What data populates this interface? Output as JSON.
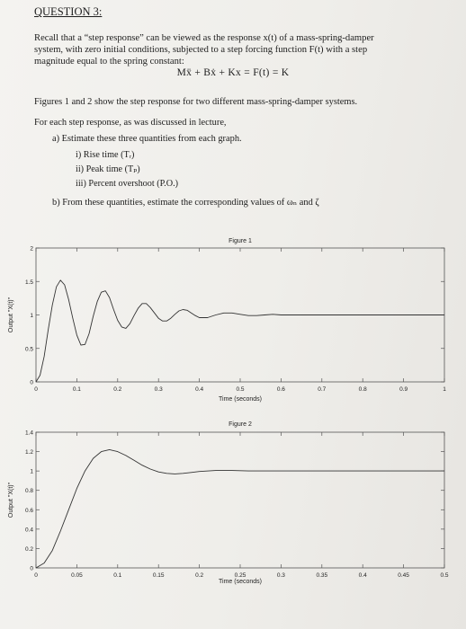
{
  "header": {
    "title": "QUESTION 3:"
  },
  "intro": {
    "line1": "Recall that a “step response” can be viewed as the response x(t) of a mass-spring-damper",
    "line2": "system, with zero initial conditions, subjected to a step forcing function F(t) with a step",
    "line3": "magnitude equal to the spring constant:"
  },
  "equation": "Mẍ + Bẋ + Kx = F(t) = K",
  "figures_text": "Figures 1 and 2 show the step response for two different mass-spring-damper systems.",
  "for_each": "For each step response, as was discussed in lecture,",
  "part_a": {
    "label": "a)  Estimate these three quantities from each graph.",
    "items": [
      "i)    Rise time (Tᵣ)",
      "ii)   Peak time (Tₚ)",
      "iii)  Percent overshoot (P.O.)"
    ]
  },
  "part_b": {
    "label": "b)  From these quantities, estimate the corresponding values of ωₙ and ζ"
  },
  "chart_data": [
    {
      "type": "line",
      "title": "Figure 1",
      "xlabel": "Time (seconds)",
      "ylabel": "Output \"X(t)\"",
      "xlim": [
        0,
        1
      ],
      "ylim": [
        0,
        2
      ],
      "xticks": [
        "0",
        "0.1",
        "0.2",
        "0.3",
        "0.4",
        "0.5",
        "0.6",
        "0.7",
        "0.8",
        "0.9",
        "1"
      ],
      "yticks": [
        "0",
        "0.5",
        "1",
        "1.5",
        "2"
      ],
      "grid": false,
      "series": [
        {
          "x": [
            0,
            0.01,
            0.02,
            0.03,
            0.04,
            0.05,
            0.06,
            0.07,
            0.08,
            0.09,
            0.1,
            0.11,
            0.12,
            0.13,
            0.14,
            0.15,
            0.16,
            0.17,
            0.18,
            0.19,
            0.2,
            0.21,
            0.22,
            0.23,
            0.24,
            0.25,
            0.26,
            0.27,
            0.28,
            0.29,
            0.3,
            0.31,
            0.32,
            0.33,
            0.34,
            0.35,
            0.36,
            0.37,
            0.38,
            0.39,
            0.4,
            0.42,
            0.44,
            0.46,
            0.48,
            0.5,
            0.52,
            0.54,
            0.56,
            0.58,
            0.6,
            0.65,
            0.7,
            0.75,
            0.8,
            0.85,
            0.9,
            0.95,
            1.0
          ],
          "y": [
            0,
            0.1,
            0.38,
            0.78,
            1.15,
            1.42,
            1.52,
            1.45,
            1.23,
            0.95,
            0.7,
            0.55,
            0.56,
            0.72,
            0.98,
            1.2,
            1.34,
            1.36,
            1.26,
            1.08,
            0.92,
            0.82,
            0.8,
            0.87,
            0.99,
            1.1,
            1.17,
            1.17,
            1.11,
            1.03,
            0.95,
            0.91,
            0.91,
            0.95,
            1.01,
            1.06,
            1.08,
            1.07,
            1.03,
            0.99,
            0.96,
            0.96,
            1.0,
            1.03,
            1.03,
            1.01,
            0.99,
            0.99,
            1.0,
            1.01,
            1.0,
            1.0,
            1.0,
            1.0,
            1.0,
            1.0,
            1.0,
            1.0,
            1.0
          ]
        }
      ]
    },
    {
      "type": "line",
      "title": "Figure 2",
      "xlabel": "Time (seconds)",
      "ylabel": "Output \"X(t)\"",
      "xlim": [
        0,
        0.5
      ],
      "ylim": [
        0,
        1.4
      ],
      "xticks": [
        "0",
        "0.05",
        "0.1",
        "0.15",
        "0.2",
        "0.25",
        "0.3",
        "0.35",
        "0.4",
        "0.45",
        "0.5"
      ],
      "yticks": [
        "0",
        "0.2",
        "0.4",
        "0.6",
        "0.8",
        "1",
        "1.2",
        "1.4"
      ],
      "grid": false,
      "series": [
        {
          "x": [
            0,
            0.01,
            0.02,
            0.03,
            0.04,
            0.05,
            0.06,
            0.07,
            0.08,
            0.09,
            0.1,
            0.11,
            0.12,
            0.13,
            0.14,
            0.15,
            0.16,
            0.17,
            0.18,
            0.19,
            0.2,
            0.22,
            0.24,
            0.26,
            0.28,
            0.3,
            0.32,
            0.35,
            0.4,
            0.45,
            0.5
          ],
          "y": [
            0,
            0.05,
            0.18,
            0.38,
            0.6,
            0.82,
            1.0,
            1.13,
            1.2,
            1.22,
            1.2,
            1.16,
            1.11,
            1.06,
            1.02,
            0.99,
            0.975,
            0.97,
            0.975,
            0.985,
            0.995,
            1.005,
            1.005,
            1.0,
            1.0,
            1.0,
            1.0,
            1.0,
            1.0,
            1.0,
            1.0
          ]
        }
      ]
    }
  ]
}
